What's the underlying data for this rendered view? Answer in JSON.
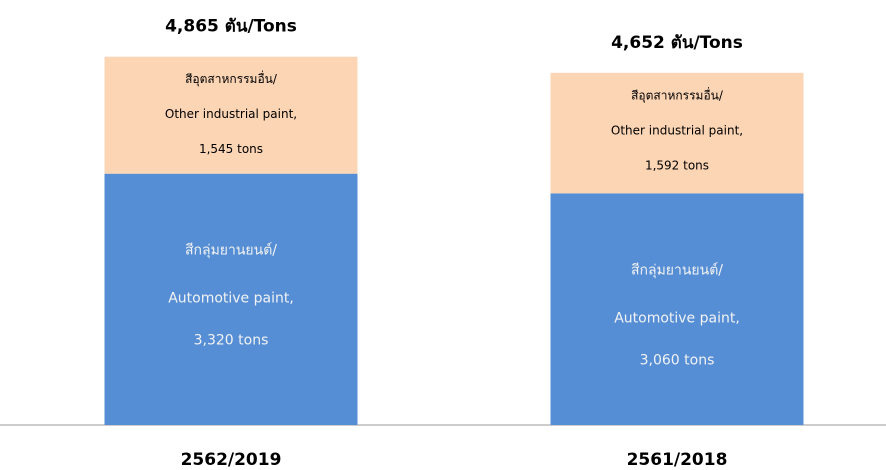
{
  "chart_data": {
    "type": "stacked_bar",
    "categories": [
      "2562/2019",
      "2561/2018"
    ],
    "series": [
      {
        "name": [
          "สีกลุ่มยานยนต์/",
          "Automotive paint,"
        ],
        "color": "#558ed5",
        "values": [
          3320,
          3060
        ],
        "value_labels": [
          "3,320 tons",
          "3,060 tons"
        ]
      },
      {
        "name": [
          "สีอุตสาหกรรมอื่น/",
          "Other industrial paint,"
        ],
        "color": "#fcd5b5",
        "values": [
          1545,
          1592
        ],
        "value_labels": [
          "1,545 tons",
          "1,592 tons"
        ]
      }
    ],
    "totals": [
      4865,
      4652
    ],
    "total_labels": [
      "4,865 ตัน/Tons",
      "4,652 ตัน/Tons"
    ]
  }
}
